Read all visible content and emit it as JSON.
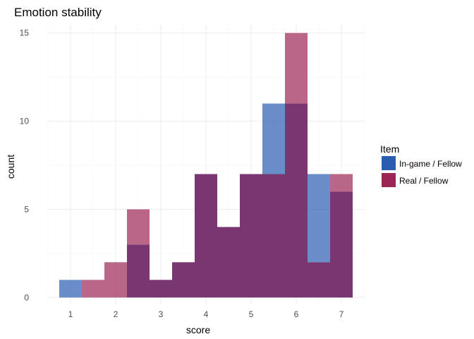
{
  "chart_data": {
    "type": "bar",
    "subtype": "overlapping-histogram",
    "title": "Emotion stability",
    "xlabel": "score",
    "ylabel": "count",
    "xlim": [
      0.5,
      7.5
    ],
    "ylim": [
      0,
      15
    ],
    "x_ticks": [
      1,
      2,
      3,
      4,
      5,
      6,
      7
    ],
    "y_ticks": [
      0,
      5,
      10,
      15
    ],
    "grid": true,
    "legend": {
      "title": "Item",
      "position": "right"
    },
    "bin_width": 0.5,
    "bins": [
      [
        0.75,
        1.25
      ],
      [
        1.25,
        1.75
      ],
      [
        1.75,
        2.25
      ],
      [
        2.25,
        2.75
      ],
      [
        2.75,
        3.25
      ],
      [
        3.25,
        3.75
      ],
      [
        3.75,
        4.25
      ],
      [
        4.25,
        4.75
      ],
      [
        4.75,
        5.25
      ],
      [
        5.25,
        5.75
      ],
      [
        5.75,
        6.25
      ],
      [
        6.25,
        6.75
      ],
      [
        6.75,
        7.25
      ]
    ],
    "series": [
      {
        "name": "In-game / Fellow",
        "color": "#2a5db0",
        "values": [
          1,
          0,
          0,
          3,
          1,
          2,
          7,
          4,
          7,
          11,
          11,
          7,
          6
        ]
      },
      {
        "name": "Real / Fellow",
        "color": "#9c2555",
        "values": [
          0,
          1,
          2,
          5,
          1,
          2,
          7,
          4,
          7,
          7,
          15,
          2,
          7
        ]
      }
    ],
    "overlap_color": "#7a3670"
  }
}
